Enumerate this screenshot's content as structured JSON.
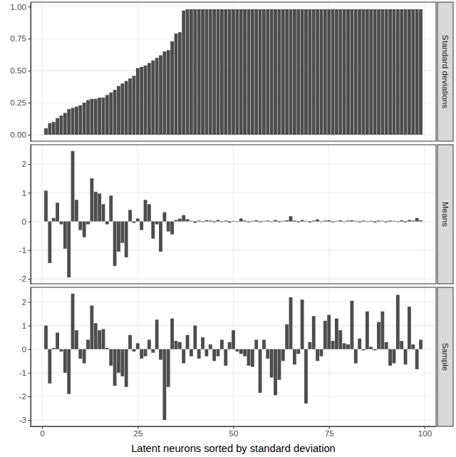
{
  "chart_data": [
    {
      "type": "bar",
      "title": "Standard deviations",
      "color": "#4d4d4d",
      "grid": true,
      "tick_labels": "y",
      "x": [
        1,
        2,
        3,
        4,
        5,
        6,
        7,
        8,
        9,
        10,
        11,
        12,
        13,
        14,
        15,
        16,
        17,
        18,
        19,
        20,
        21,
        22,
        23,
        24,
        25,
        26,
        27,
        28,
        29,
        30,
        31,
        32,
        33,
        34,
        35,
        36,
        37,
        38,
        39,
        40,
        41,
        42,
        43,
        44,
        45,
        46,
        47,
        48,
        49,
        50,
        51,
        52,
        53,
        54,
        55,
        56,
        57,
        58,
        59,
        60,
        61,
        62,
        63,
        64,
        65,
        66,
        67,
        68,
        69,
        70,
        71,
        72,
        73,
        74,
        75,
        76,
        77,
        78,
        79,
        80,
        81,
        82,
        83,
        84,
        85,
        86,
        87,
        88,
        89,
        90,
        91,
        92,
        93,
        94,
        95,
        96,
        97,
        98,
        99
      ],
      "values": [
        0.05,
        0.09,
        0.1,
        0.13,
        0.15,
        0.17,
        0.2,
        0.21,
        0.22,
        0.23,
        0.25,
        0.27,
        0.28,
        0.28,
        0.29,
        0.29,
        0.31,
        0.33,
        0.35,
        0.38,
        0.4,
        0.42,
        0.44,
        0.46,
        0.52,
        0.53,
        0.54,
        0.56,
        0.58,
        0.6,
        0.62,
        0.65,
        0.66,
        0.73,
        0.79,
        0.8,
        0.97,
        0.98,
        0.98,
        0.98,
        0.98,
        0.98,
        0.98,
        0.98,
        0.98,
        0.98,
        0.98,
        0.98,
        0.98,
        0.98,
        0.98,
        0.98,
        0.98,
        0.98,
        0.98,
        0.98,
        0.98,
        0.98,
        0.98,
        0.98,
        0.98,
        0.98,
        0.98,
        0.98,
        0.98,
        0.98,
        0.98,
        0.98,
        0.98,
        0.98,
        0.98,
        0.98,
        0.98,
        0.98,
        0.98,
        0.98,
        0.98,
        0.98,
        0.98,
        0.98,
        0.98,
        0.98,
        0.98,
        0.98,
        0.98,
        0.98,
        0.98,
        0.98,
        0.98,
        0.98,
        0.98,
        0.98,
        0.98,
        0.98,
        0.98,
        0.98,
        0.98,
        0.98,
        0.98
      ],
      "xlim": [
        -3,
        103
      ],
      "xticks": [
        0,
        25,
        50,
        75,
        100
      ],
      "ylim": [
        -0.05,
        1.035
      ],
      "yticks": [
        {
          "value": 0,
          "label": "0.00"
        },
        {
          "value": 0.25,
          "label": "0.25"
        },
        {
          "value": 0.5,
          "label": "0.50"
        },
        {
          "value": 0.75,
          "label": "0.75"
        },
        {
          "value": 1,
          "label": "1.00"
        }
      ]
    },
    {
      "type": "bar",
      "title": "Means",
      "color": "#4d4d4d",
      "grid": true,
      "tick_labels": "y",
      "x": [
        1,
        2,
        3,
        4,
        5,
        6,
        7,
        8,
        9,
        10,
        11,
        12,
        13,
        14,
        15,
        16,
        17,
        18,
        19,
        20,
        21,
        22,
        23,
        24,
        25,
        26,
        27,
        28,
        29,
        30,
        31,
        32,
        33,
        34,
        35,
        36,
        37,
        38,
        39,
        40,
        41,
        42,
        43,
        44,
        45,
        46,
        47,
        48,
        49,
        50,
        51,
        52,
        53,
        54,
        55,
        56,
        57,
        58,
        59,
        60,
        61,
        62,
        63,
        64,
        65,
        66,
        67,
        68,
        69,
        70,
        71,
        72,
        73,
        74,
        75,
        76,
        77,
        78,
        79,
        80,
        81,
        82,
        83,
        84,
        85,
        86,
        87,
        88,
        89,
        90,
        91,
        92,
        93,
        94,
        95,
        96,
        97,
        98,
        99
      ],
      "values": [
        1.07,
        -1.45,
        0.12,
        0.65,
        -0.1,
        -0.95,
        -1.95,
        2.45,
        0.75,
        -0.3,
        -0.55,
        -0.1,
        1.5,
        1.03,
        0.97,
        0.6,
        -0.1,
        0.9,
        -1.55,
        -1.05,
        -0.75,
        -1.25,
        0.4,
        -0.05,
        0.1,
        -0.3,
        0.75,
        0.6,
        -0.6,
        -0.1,
        -1.05,
        0.32,
        -0.35,
        -0.45,
        0.05,
        0.1,
        0.22,
        0.08,
        0.02,
        -0.05,
        0.03,
        -0.02,
        0.04,
        0.03,
        -0.03,
        0.05,
        -0.02,
        0.03,
        -0.04,
        0.02,
        -0.02,
        0.1,
        0.03,
        -0.03,
        0.02,
        0.04,
        -0.03,
        0.02,
        0.03,
        -0.02,
        0.05,
        -0.03,
        0.02,
        0.04,
        0.18,
        0.03,
        -0.03,
        0.05,
        0.02,
        -0.04,
        0.03,
        0.07,
        -0.02,
        0.03,
        0.04,
        -0.03,
        0.02,
        0.04,
        -0.02,
        0.03,
        0.04,
        0.02,
        -0.03,
        0.03,
        -0.02,
        0.02,
        -0.04,
        0.03,
        0.02,
        -0.03,
        0.03,
        0.02,
        -0.02,
        0.04,
        -0.03,
        0.05,
        0.03,
        0.12,
        0.04
      ],
      "xlim": [
        -3,
        103
      ],
      "xticks": [
        0,
        25,
        50,
        75,
        100
      ],
      "ylim": [
        -2.17,
        2.67
      ],
      "yticks": [
        -2,
        -1,
        0,
        1,
        2
      ]
    },
    {
      "type": "bar",
      "title": "Sample",
      "color": "#4d4d4d",
      "grid": true,
      "x_label": "Latent neurons sorted by standard deviation",
      "x": [
        1,
        2,
        3,
        4,
        5,
        6,
        7,
        8,
        9,
        10,
        11,
        12,
        13,
        14,
        15,
        16,
        17,
        18,
        19,
        20,
        21,
        22,
        23,
        24,
        25,
        26,
        27,
        28,
        29,
        30,
        31,
        32,
        33,
        34,
        35,
        36,
        37,
        38,
        39,
        40,
        41,
        42,
        43,
        44,
        45,
        46,
        47,
        48,
        49,
        50,
        51,
        52,
        53,
        54,
        55,
        56,
        57,
        58,
        59,
        60,
        61,
        62,
        63,
        64,
        65,
        66,
        67,
        68,
        69,
        70,
        71,
        72,
        73,
        74,
        75,
        76,
        77,
        78,
        79,
        80,
        81,
        82,
        83,
        84,
        85,
        86,
        87,
        88,
        89,
        90,
        91,
        92,
        93,
        94,
        95,
        96,
        97,
        98,
        99
      ],
      "values": [
        1.0,
        -1.45,
        0.05,
        0.7,
        -0.1,
        -1.0,
        -1.9,
        2.35,
        0.8,
        -0.4,
        -0.6,
        0.4,
        1.85,
        1.1,
        0.8,
        0.85,
        0.05,
        -0.7,
        -1.55,
        -1.0,
        -1.15,
        -1.6,
        0.6,
        -0.1,
        0.25,
        -0.4,
        -0.3,
        0.4,
        -0.15,
        1.25,
        -0.45,
        -3.0,
        -1.6,
        1.3,
        0.35,
        0.3,
        -0.6,
        0.6,
        -0.3,
        1.0,
        -0.4,
        0.5,
        -0.3,
        0.2,
        -0.5,
        -0.3,
        0.4,
        -0.7,
        0.3,
        0.8,
        -0.1,
        -0.2,
        -0.3,
        -0.7,
        -0.75,
        0.4,
        -1.85,
        0.4,
        -0.4,
        -1.2,
        -1.95,
        -1.3,
        -0.5,
        1.05,
        2.2,
        -0.65,
        -0.2,
        2.1,
        -2.3,
        0.3,
        1.4,
        -0.5,
        -0.3,
        1.2,
        1.45,
        0.35,
        1.3,
        0.8,
        0.25,
        0.2,
        2.05,
        -0.6,
        0.45,
        -0.05,
        1.6,
        0.1,
        -0.05,
        1.15,
        1.6,
        0.3,
        -0.7,
        -0.6,
        2.3,
        0.35,
        -0.65,
        1.8,
        0.2,
        -0.85,
        0.4
      ],
      "xlim": [
        -3,
        103
      ],
      "xticks": [
        0,
        25,
        50,
        75,
        100
      ],
      "ylim": [
        -3.27,
        2.62
      ],
      "yticks": [
        -3,
        -2,
        -1,
        0,
        1,
        2
      ]
    }
  ]
}
